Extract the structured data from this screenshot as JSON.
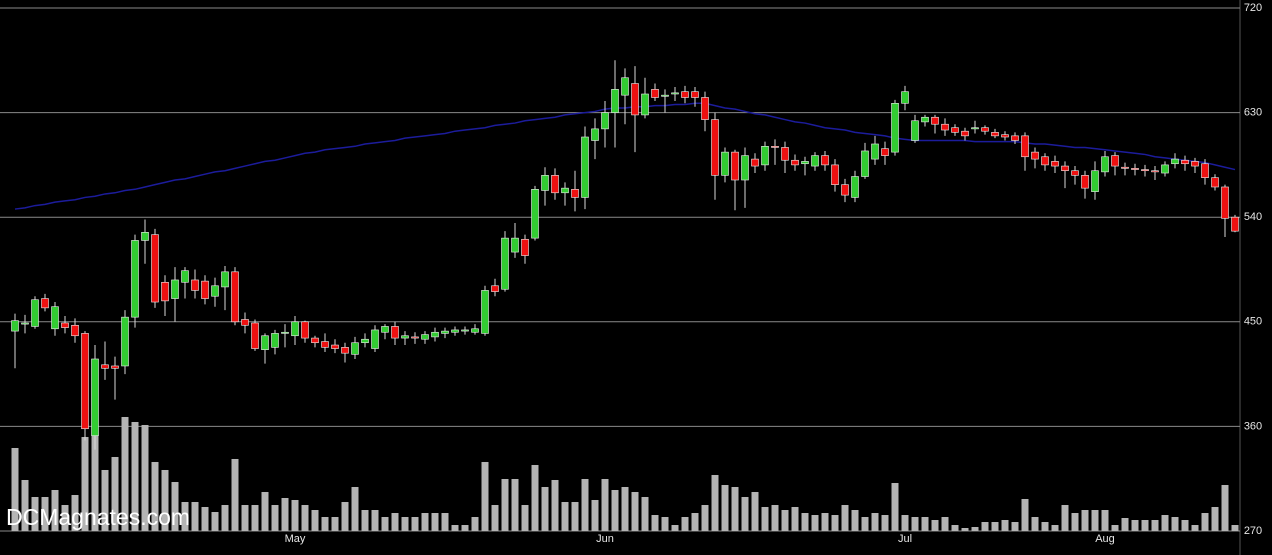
{
  "chart_data": {
    "type": "candlestick",
    "watermark": "DCMagnates.com",
    "categories": [
      null,
      null,
      null,
      null,
      null,
      null,
      null,
      null,
      null,
      null,
      null,
      null,
      null,
      null,
      null,
      null,
      null,
      null,
      null,
      null,
      null,
      null,
      null,
      null,
      null,
      null,
      null,
      null,
      "May",
      null,
      null,
      null,
      null,
      null,
      null,
      null,
      null,
      null,
      null,
      null,
      null,
      null,
      null,
      null,
      null,
      null,
      null,
      null,
      null,
      null,
      null,
      null,
      null,
      null,
      null,
      null,
      null,
      null,
      null,
      "Jun",
      null,
      null,
      null,
      null,
      null,
      null,
      null,
      null,
      null,
      null,
      null,
      null,
      null,
      null,
      null,
      null,
      null,
      null,
      null,
      null,
      null,
      null,
      null,
      null,
      null,
      null,
      null,
      null,
      null,
      "Jul",
      null,
      null,
      null,
      null,
      null,
      null,
      null,
      null,
      null,
      null,
      null,
      null,
      null,
      null,
      null,
      null,
      null,
      null,
      null,
      "Aug",
      null,
      null,
      null,
      null,
      null,
      null,
      null,
      null,
      null,
      null,
      null,
      null,
      null
    ],
    "open": [
      442,
      448,
      446,
      470,
      444,
      449,
      447,
      440,
      352,
      413,
      412,
      412,
      454,
      520,
      525,
      484,
      470,
      484,
      486,
      485,
      472,
      480,
      493,
      452,
      449,
      426,
      428,
      440,
      438,
      450,
      436,
      433,
      430,
      428,
      422,
      432,
      427,
      441,
      446,
      436,
      437,
      435,
      437,
      440,
      441,
      442,
      441,
      440,
      481,
      478,
      510,
      521,
      522,
      563,
      576,
      561,
      564,
      557,
      606,
      616,
      630,
      645,
      655,
      628,
      650,
      644,
      646,
      648,
      648,
      643,
      624,
      576,
      596,
      572,
      590,
      585,
      601,
      600,
      589,
      586,
      584,
      593,
      585,
      568,
      557,
      575,
      590,
      599,
      596,
      638,
      606,
      622,
      626,
      620,
      617,
      614,
      616,
      617,
      613,
      611,
      610,
      610,
      596,
      592,
      588,
      584,
      580,
      576,
      562,
      579,
      593,
      583,
      582,
      581,
      580,
      578,
      586,
      589,
      588,
      586,
      574,
      566,
      540
    ],
    "high": [
      457,
      456,
      472,
      474,
      467,
      455,
      453,
      442,
      430,
      433,
      420,
      460,
      525,
      538,
      530,
      490,
      497,
      497,
      495,
      490,
      488,
      498,
      497,
      458,
      452,
      440,
      443,
      448,
      455,
      451,
      438,
      440,
      435,
      432,
      437,
      440,
      447,
      448,
      450,
      442,
      441,
      442,
      445,
      445,
      446,
      446,
      448,
      481,
      487,
      528,
      535,
      525,
      567,
      583,
      582,
      570,
      580,
      618,
      625,
      640,
      675,
      668,
      670,
      660,
      655,
      650,
      652,
      653,
      652,
      648,
      630,
      600,
      598,
      600,
      595,
      605,
      607,
      605,
      594,
      592,
      596,
      597,
      590,
      573,
      580,
      604,
      610,
      605,
      641,
      653,
      628,
      628,
      628,
      625,
      620,
      617,
      623,
      619,
      616,
      614,
      613,
      613,
      600,
      595,
      593,
      588,
      584,
      580,
      588,
      597,
      596,
      587,
      586,
      585,
      584,
      588,
      595,
      593,
      591,
      590,
      577,
      568,
      542
    ],
    "low": [
      410,
      440,
      444,
      459,
      438,
      440,
      432,
      348,
      340,
      400,
      383,
      405,
      445,
      500,
      462,
      455,
      450,
      470,
      470,
      465,
      463,
      460,
      447,
      440,
      425,
      414,
      422,
      428,
      430,
      432,
      428,
      424,
      423,
      415,
      418,
      428,
      424,
      435,
      430,
      430,
      431,
      431,
      433,
      436,
      438,
      439,
      439,
      438,
      472,
      476,
      505,
      500,
      520,
      550,
      555,
      550,
      545,
      547,
      590,
      600,
      600,
      620,
      596,
      625,
      640,
      630,
      640,
      638,
      635,
      614,
      555,
      570,
      546,
      548,
      578,
      580,
      585,
      578,
      580,
      576,
      580,
      580,
      562,
      553,
      553,
      573,
      585,
      585,
      593,
      632,
      604,
      618,
      612,
      610,
      610,
      606,
      612,
      611,
      608,
      606,
      603,
      580,
      582,
      580,
      578,
      565,
      568,
      556,
      555,
      575,
      576,
      576,
      576,
      575,
      572,
      575,
      582,
      580,
      578,
      568,
      563,
      523,
      527
    ],
    "close": [
      451,
      449,
      469,
      462,
      463,
      445,
      438,
      358,
      418,
      410,
      410,
      454,
      520,
      527,
      467,
      468,
      486,
      494,
      477,
      470,
      481,
      493,
      450,
      447,
      427,
      438,
      440,
      441,
      450,
      436,
      432,
      428,
      427,
      423,
      432,
      435,
      443,
      446,
      436,
      438,
      436,
      439,
      441,
      442,
      443,
      443,
      444,
      477,
      476,
      522,
      522,
      507,
      564,
      576,
      561,
      565,
      557,
      609,
      616,
      630,
      650,
      660,
      628,
      646,
      643,
      645,
      647,
      643,
      643,
      624,
      576,
      596,
      572,
      593,
      584,
      601,
      600,
      589,
      585,
      588,
      593,
      585,
      568,
      559,
      575,
      597,
      603,
      593,
      638,
      648,
      623,
      626,
      620,
      615,
      613,
      610,
      617,
      614,
      610,
      609,
      606,
      592,
      590,
      585,
      584,
      580,
      576,
      565,
      580,
      592,
      584,
      582,
      581,
      580,
      579,
      585,
      590,
      586,
      584,
      574,
      566,
      539,
      528
    ],
    "volume": [
      83,
      51,
      34,
      34,
      41,
      26,
      36,
      94,
      101,
      61,
      74,
      114,
      109,
      106,
      69,
      61,
      49,
      29,
      29,
      24,
      19,
      26,
      72,
      26,
      26,
      39,
      26,
      33,
      31,
      26,
      21,
      14,
      14,
      29,
      44,
      21,
      21,
      14,
      18,
      14,
      14,
      18,
      18,
      18,
      6,
      6,
      14,
      69,
      26,
      52,
      52,
      26,
      66,
      44,
      51,
      29,
      29,
      52,
      31,
      52,
      41,
      44,
      39,
      34,
      16,
      14,
      6,
      14,
      18,
      26,
      56,
      46,
      44,
      34,
      39,
      24,
      26,
      21,
      24,
      18,
      16,
      18,
      16,
      26,
      21,
      14,
      18,
      16,
      48,
      16,
      14,
      14,
      11,
      14,
      6,
      3,
      4,
      9,
      9,
      11,
      9,
      32,
      14,
      9,
      6,
      26,
      18,
      21,
      21,
      21,
      6,
      13,
      11,
      11,
      11,
      16,
      14,
      11,
      6,
      18,
      24,
      46,
      6
    ],
    "ma": [
      547,
      548,
      550,
      551,
      553,
      554,
      555,
      557,
      558,
      560,
      561,
      563,
      564,
      566,
      568,
      570,
      572,
      573,
      575,
      577,
      579,
      580,
      582,
      584,
      586,
      588,
      589,
      591,
      593,
      595,
      596,
      598,
      599,
      600,
      601,
      603,
      604,
      605,
      606,
      608,
      609,
      610,
      611,
      612,
      614,
      615,
      616,
      617,
      619,
      620,
      621,
      623,
      624,
      625,
      626,
      628,
      629,
      630,
      631,
      633,
      634,
      634,
      635,
      635,
      636,
      636,
      637,
      637,
      638,
      638,
      636,
      634,
      633,
      631,
      629,
      628,
      626,
      624,
      622,
      621,
      619,
      617,
      616,
      615,
      613,
      612,
      611,
      610,
      608,
      607,
      606,
      606,
      606,
      606,
      606,
      606,
      605,
      605,
      605,
      605,
      605,
      604,
      603,
      603,
      602,
      601,
      600,
      600,
      599,
      598,
      597,
      596,
      595,
      594,
      592,
      591,
      590,
      589,
      588,
      587,
      585,
      583,
      581
    ],
    "ylim": [
      270,
      720
    ],
    "yticks": [
      270,
      360,
      450,
      540,
      630,
      720
    ],
    "grid": true,
    "up_color": "#33cc33",
    "down_color": "#ee1111",
    "volume_color": "#b4b4b4",
    "ma_color": "#1c1c9c"
  }
}
